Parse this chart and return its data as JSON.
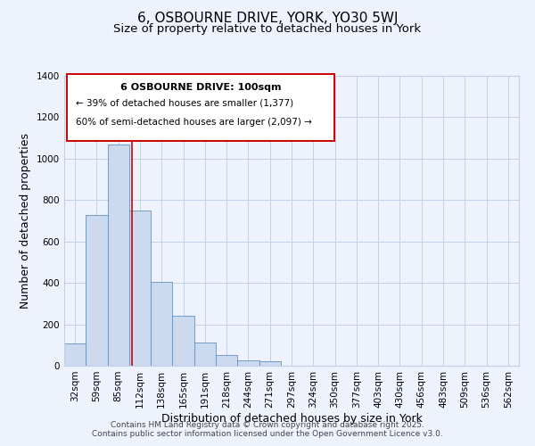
{
  "title": "6, OSBOURNE DRIVE, YORK, YO30 5WJ",
  "subtitle": "Size of property relative to detached houses in York",
  "xlabel": "Distribution of detached houses by size in York",
  "ylabel": "Number of detached properties",
  "categories": [
    "32sqm",
    "59sqm",
    "85sqm",
    "112sqm",
    "138sqm",
    "165sqm",
    "191sqm",
    "218sqm",
    "244sqm",
    "271sqm",
    "297sqm",
    "324sqm",
    "350sqm",
    "377sqm",
    "403sqm",
    "430sqm",
    "456sqm",
    "483sqm",
    "509sqm",
    "536sqm",
    "562sqm"
  ],
  "values": [
    107,
    730,
    1070,
    750,
    405,
    243,
    112,
    50,
    27,
    22,
    0,
    0,
    0,
    0,
    0,
    0,
    0,
    0,
    0,
    0,
    0
  ],
  "bar_color": "#ccdaf0",
  "bar_edge_color": "#6090c0",
  "grid_color": "#c0d0e8",
  "bg_color": "#eef2fc",
  "annotation_box_color": "#ffffff",
  "annotation_border_color": "#cc0000",
  "vline_color": "#cc0000",
  "vline_x_index": 2.62,
  "annotation_title": "6 OSBOURNE DRIVE: 100sqm",
  "annotation_line1": "← 39% of detached houses are smaller (1,377)",
  "annotation_line2": "60% of semi-detached houses are larger (2,097) →",
  "ylim": [
    0,
    1400
  ],
  "yticks": [
    0,
    200,
    400,
    600,
    800,
    1000,
    1200,
    1400
  ],
  "footer1": "Contains HM Land Registry data © Crown copyright and database right 2025.",
  "footer2": "Contains public sector information licensed under the Open Government Licence v3.0.",
  "title_fontsize": 11,
  "subtitle_fontsize": 9.5,
  "axis_label_fontsize": 9,
  "tick_fontsize": 7.5,
  "footer_fontsize": 6.5,
  "ann_title_fontsize": 8,
  "ann_text_fontsize": 7.5
}
